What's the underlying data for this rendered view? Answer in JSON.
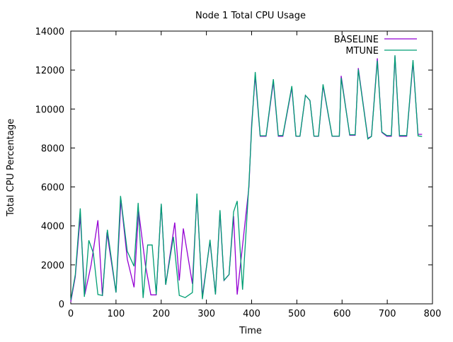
{
  "chart_data": {
    "type": "line",
    "title": "Node 1 Total CPU Usage",
    "xlabel": "Time",
    "ylabel": "Total CPU Percentage",
    "xlim": [
      0,
      800
    ],
    "ylim": [
      0,
      14000
    ],
    "xticks": [
      0,
      100,
      200,
      300,
      400,
      500,
      600,
      700,
      800
    ],
    "yticks": [
      0,
      2000,
      4000,
      6000,
      8000,
      10000,
      12000,
      14000
    ],
    "grid": false,
    "legend": "top-right",
    "series": [
      {
        "name": "BASELINE",
        "color": "#9400d3",
        "points": [
          [
            0,
            100
          ],
          [
            10,
            1400
          ],
          [
            21,
            4490
          ],
          [
            31,
            480
          ],
          [
            45,
            2000
          ],
          [
            60,
            4290
          ],
          [
            70,
            400
          ],
          [
            80,
            3660
          ],
          [
            100,
            580
          ],
          [
            111,
            5340
          ],
          [
            125,
            2300
          ],
          [
            140,
            850
          ],
          [
            150,
            4790
          ],
          [
            165,
            2000
          ],
          [
            177,
            460
          ],
          [
            189,
            460
          ],
          [
            200,
            5100
          ],
          [
            210,
            980
          ],
          [
            230,
            4170
          ],
          [
            240,
            1200
          ],
          [
            249,
            3870
          ],
          [
            269,
            1030
          ],
          [
            279,
            5500
          ],
          [
            291,
            400
          ],
          [
            308,
            3200
          ],
          [
            320,
            500
          ],
          [
            330,
            4700
          ],
          [
            339,
            1200
          ],
          [
            350,
            1500
          ],
          [
            360,
            4500
          ],
          [
            368,
            480
          ],
          [
            380,
            3000
          ],
          [
            394,
            6000
          ],
          [
            400,
            9200
          ],
          [
            408,
            11700
          ],
          [
            419,
            8600
          ],
          [
            432,
            8600
          ],
          [
            448,
            11400
          ],
          [
            459,
            8600
          ],
          [
            469,
            8600
          ],
          [
            489,
            11100
          ],
          [
            498,
            8600
          ],
          [
            507,
            8600
          ],
          [
            519,
            10700
          ],
          [
            529,
            10440
          ],
          [
            538,
            8600
          ],
          [
            548,
            8600
          ],
          [
            558,
            11200
          ],
          [
            578,
            8600
          ],
          [
            594,
            8600
          ],
          [
            598,
            11700
          ],
          [
            617,
            8650
          ],
          [
            629,
            8650
          ],
          [
            636,
            12100
          ],
          [
            657,
            8500
          ],
          [
            665,
            8600
          ],
          [
            678,
            12600
          ],
          [
            688,
            8800
          ],
          [
            699,
            8600
          ],
          [
            709,
            8600
          ],
          [
            717,
            12700
          ],
          [
            727,
            8600
          ],
          [
            743,
            8600
          ],
          [
            757,
            12400
          ],
          [
            768,
            8700
          ],
          [
            777,
            8700
          ]
        ]
      },
      {
        "name": "MTUNE",
        "color": "#009e73",
        "points": [
          [
            0,
            200
          ],
          [
            10,
            1500
          ],
          [
            21,
            4900
          ],
          [
            30,
            360
          ],
          [
            40,
            3260
          ],
          [
            50,
            2600
          ],
          [
            60,
            480
          ],
          [
            70,
            430
          ],
          [
            81,
            3800
          ],
          [
            100,
            580
          ],
          [
            110,
            5540
          ],
          [
            125,
            2700
          ],
          [
            140,
            1930
          ],
          [
            149,
            5180
          ],
          [
            160,
            300
          ],
          [
            170,
            3020
          ],
          [
            180,
            3020
          ],
          [
            189,
            480
          ],
          [
            200,
            5140
          ],
          [
            210,
            980
          ],
          [
            227,
            3440
          ],
          [
            240,
            430
          ],
          [
            253,
            320
          ],
          [
            269,
            580
          ],
          [
            279,
            5660
          ],
          [
            291,
            240
          ],
          [
            308,
            3290
          ],
          [
            320,
            480
          ],
          [
            330,
            4810
          ],
          [
            339,
            1210
          ],
          [
            350,
            1510
          ],
          [
            360,
            4720
          ],
          [
            368,
            5280
          ],
          [
            380,
            730
          ],
          [
            394,
            6170
          ],
          [
            400,
            9000
          ],
          [
            408,
            11900
          ],
          [
            419,
            8630
          ],
          [
            432,
            8630
          ],
          [
            448,
            11530
          ],
          [
            459,
            8640
          ],
          [
            469,
            8640
          ],
          [
            489,
            11180
          ],
          [
            498,
            8610
          ],
          [
            507,
            8610
          ],
          [
            519,
            10700
          ],
          [
            529,
            10440
          ],
          [
            538,
            8610
          ],
          [
            548,
            8610
          ],
          [
            558,
            11270
          ],
          [
            578,
            8610
          ],
          [
            594,
            8610
          ],
          [
            598,
            11600
          ],
          [
            617,
            8680
          ],
          [
            629,
            8680
          ],
          [
            636,
            12030
          ],
          [
            657,
            8460
          ],
          [
            665,
            8590
          ],
          [
            678,
            12480
          ],
          [
            688,
            8820
          ],
          [
            699,
            8640
          ],
          [
            709,
            8640
          ],
          [
            717,
            12760
          ],
          [
            727,
            8640
          ],
          [
            743,
            8640
          ],
          [
            757,
            12510
          ],
          [
            768,
            8620
          ],
          [
            777,
            8590
          ]
        ]
      }
    ]
  }
}
